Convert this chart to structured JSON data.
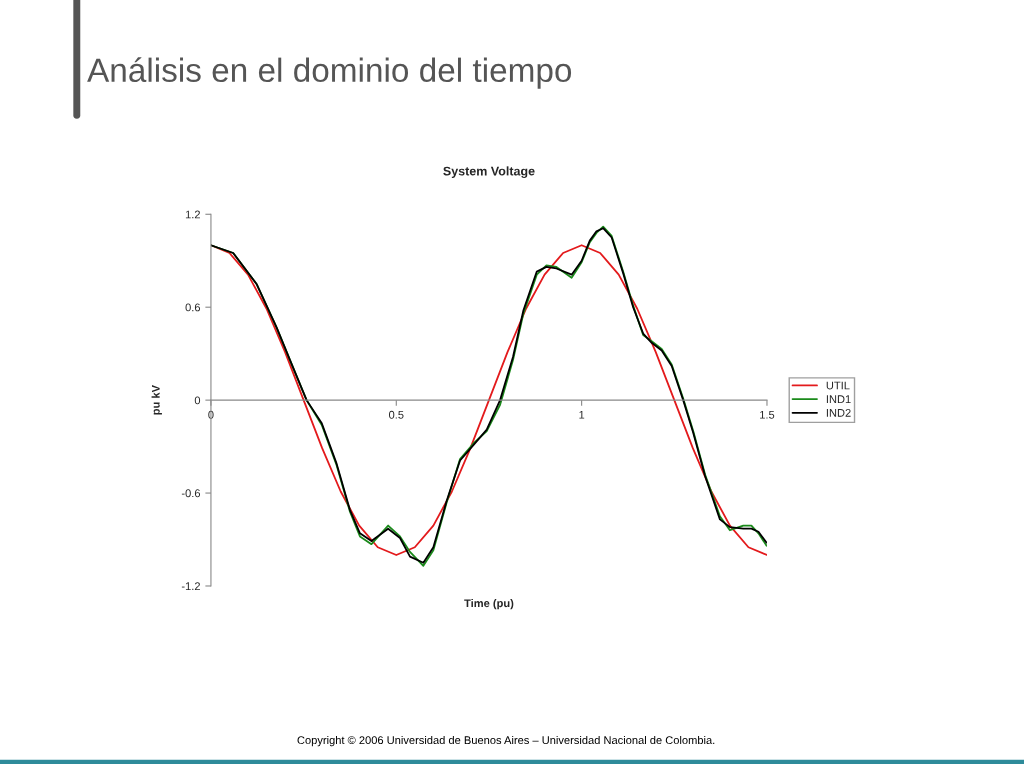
{
  "chart_data": {
    "type": "line",
    "title": "System Voltage",
    "xlabel": "Time (pu)",
    "ylabel": "pu kV",
    "annotations": [
      "Análisis en el dominio del tiempo",
      "Copyright © 2006 Universidad de Buenos Aires – Universidad Nacional de Colombia."
    ],
    "xlim": [
      0,
      1.5
    ],
    "ylim": [
      -1.2,
      1.2
    ],
    "xticks": [
      0,
      0.5,
      1,
      1.5
    ],
    "yticks": [
      -1.2,
      -0.6,
      0,
      0.6,
      1.2
    ],
    "grid": false,
    "legend": "right",
    "marker": "none",
    "line_style": "solid",
    "series": [
      {
        "name": "UTIL",
        "color": "#e31a1c",
        "x": [
          0,
          0.05,
          0.1,
          0.15,
          0.2,
          0.25,
          0.3,
          0.35,
          0.4,
          0.45,
          0.5,
          0.55,
          0.6,
          0.65,
          0.7,
          0.75,
          0.8,
          0.85,
          0.9,
          0.95,
          1.0,
          1.05,
          1.1,
          1.15,
          1.2,
          1.25,
          1.3,
          1.35,
          1.4,
          1.45,
          1.5
        ],
        "values": [
          1.0,
          0.95,
          0.81,
          0.59,
          0.31,
          0.0,
          -0.31,
          -0.59,
          -0.81,
          -0.95,
          -1.0,
          -0.95,
          -0.81,
          -0.59,
          -0.31,
          0.0,
          0.31,
          0.59,
          0.81,
          0.95,
          1.0,
          0.95,
          0.81,
          0.59,
          0.31,
          0.0,
          -0.31,
          -0.59,
          -0.81,
          -0.95,
          -1.0
        ]
      },
      {
        "name": "IND1",
        "color": "#1a8a1a",
        "x": [
          0,
          0.06,
          0.123,
          0.177,
          0.213,
          0.258,
          0.299,
          0.339,
          0.375,
          0.402,
          0.433,
          0.478,
          0.51,
          0.537,
          0.573,
          0.6,
          0.636,
          0.672,
          0.708,
          0.744,
          0.78,
          0.815,
          0.843,
          0.879,
          0.905,
          0.932,
          0.973,
          1.0,
          1.022,
          1.04,
          1.058,
          1.081,
          1.112,
          1.139,
          1.166,
          1.189,
          1.216,
          1.243,
          1.274,
          1.301,
          1.333,
          1.373,
          1.4,
          1.436,
          1.458,
          1.477,
          1.499
        ],
        "values": [
          1.0,
          0.95,
          0.75,
          0.47,
          0.26,
          0.0,
          -0.16,
          -0.42,
          -0.72,
          -0.88,
          -0.93,
          -0.81,
          -0.88,
          -0.98,
          -1.07,
          -0.97,
          -0.66,
          -0.38,
          -0.28,
          -0.2,
          -0.03,
          0.26,
          0.56,
          0.81,
          0.87,
          0.86,
          0.79,
          0.89,
          1.02,
          1.08,
          1.12,
          1.06,
          0.83,
          0.61,
          0.42,
          0.38,
          0.33,
          0.23,
          0.01,
          -0.2,
          -0.48,
          -0.75,
          -0.84,
          -0.81,
          -0.81,
          -0.86,
          -0.94
        ]
      },
      {
        "name": "IND2",
        "color": "#000000",
        "x": [
          0,
          0.06,
          0.123,
          0.177,
          0.213,
          0.258,
          0.299,
          0.339,
          0.375,
          0.402,
          0.433,
          0.478,
          0.51,
          0.537,
          0.573,
          0.6,
          0.636,
          0.672,
          0.708,
          0.744,
          0.78,
          0.815,
          0.843,
          0.879,
          0.905,
          0.932,
          0.973,
          1.0,
          1.022,
          1.04,
          1.058,
          1.081,
          1.112,
          1.139,
          1.166,
          1.189,
          1.216,
          1.243,
          1.274,
          1.301,
          1.333,
          1.373,
          1.4,
          1.436,
          1.458,
          1.477,
          1.499
        ],
        "values": [
          1.0,
          0.95,
          0.75,
          0.47,
          0.26,
          0.0,
          -0.15,
          -0.41,
          -0.71,
          -0.86,
          -0.91,
          -0.83,
          -0.89,
          -1.01,
          -1.05,
          -0.95,
          -0.65,
          -0.39,
          -0.29,
          -0.19,
          0.0,
          0.28,
          0.58,
          0.83,
          0.86,
          0.85,
          0.81,
          0.9,
          1.03,
          1.09,
          1.11,
          1.05,
          0.82,
          0.6,
          0.43,
          0.37,
          0.32,
          0.22,
          0.0,
          -0.21,
          -0.49,
          -0.77,
          -0.82,
          -0.83,
          -0.83,
          -0.85,
          -0.92
        ]
      }
    ]
  }
}
